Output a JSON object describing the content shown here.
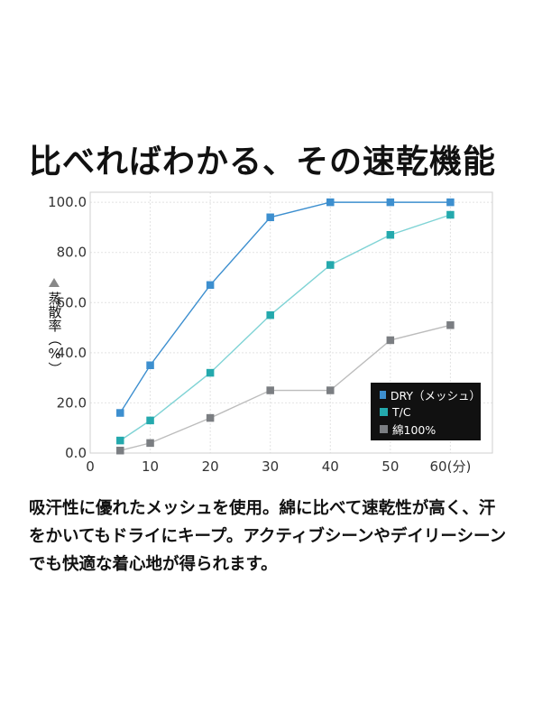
{
  "title": "比べればわかる、その速乾機能",
  "description": "吸汗性に優れたメッシュを使用。綿に比べて速乾性が高く、汗をかいてもドライにキープ。アクティブシーンやデイリーシーンでも快適な着心地が得られます。",
  "chart_data": {
    "type": "line",
    "ylabel": "蒸散率（%）",
    "x_unit_label": "60(分)",
    "xlim": [
      0,
      67
    ],
    "ylim": [
      0,
      104
    ],
    "x_ticks": [
      0,
      10,
      20,
      30,
      40,
      50,
      60
    ],
    "x_tick_labels": [
      "0",
      "10",
      "20",
      "30",
      "40",
      "50",
      "60(分)"
    ],
    "y_ticks": [
      0,
      20,
      40,
      60,
      80,
      100
    ],
    "y_tick_labels": [
      "0.0",
      "20.0",
      "40.0",
      "60.0",
      "80.0",
      "100.0"
    ],
    "grid": true,
    "legend_position": "bottom-right",
    "series": [
      {
        "name": "DRY（メッシュ）",
        "color": "#3d8fcf",
        "line_color": "#3d8fcf",
        "x": [
          5,
          10,
          20,
          30,
          40,
          50,
          60
        ],
        "y": [
          16,
          35,
          67,
          94,
          100,
          100,
          100
        ]
      },
      {
        "name": "T/C",
        "color": "#24a9ad",
        "line_color": "#7fd3d5",
        "x": [
          5,
          10,
          20,
          30,
          40,
          50,
          60
        ],
        "y": [
          5,
          13,
          32,
          55,
          75,
          87,
          95
        ]
      },
      {
        "name": "綿100%",
        "color": "#7b7e82",
        "line_color": "#bcbcbc",
        "x": [
          5,
          10,
          20,
          30,
          40,
          50,
          60
        ],
        "y": [
          1,
          4,
          14,
          25,
          25,
          45,
          51
        ]
      }
    ]
  }
}
